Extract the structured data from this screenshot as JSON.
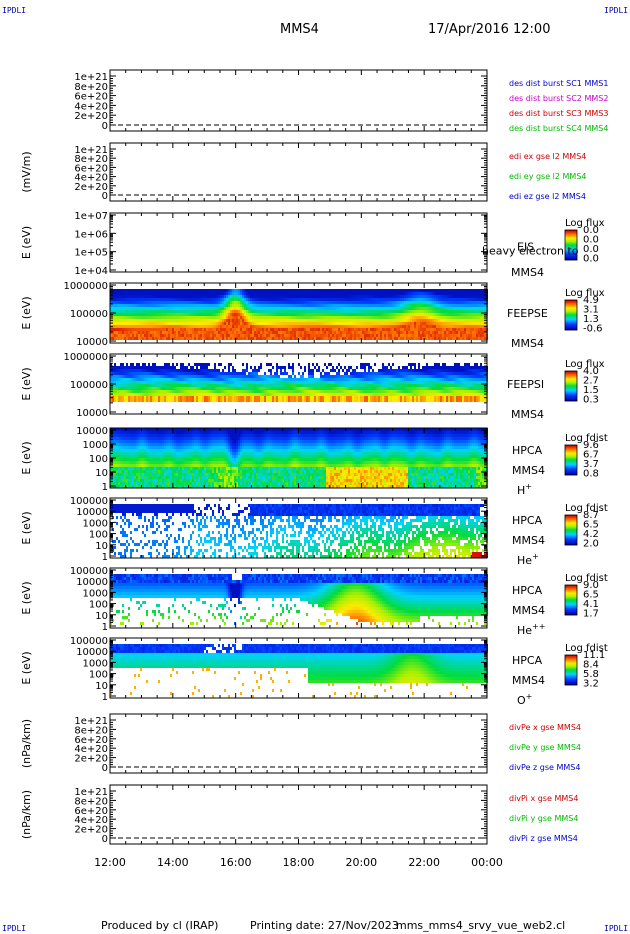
{
  "corner_label": "IPDLI",
  "header": {
    "spacecraft": "MMS4",
    "datetime": "17/Apr/2016 12:00"
  },
  "footer": {
    "producer": "Produced by cl (IRAP)",
    "printing_date": "Printing date: 27/Nov/2023",
    "script_name": "mms_mms4_srvy_vue_web2.cl"
  },
  "chart_data": {
    "type": "multi-panel",
    "x_ticks": [
      "12:00",
      "14:00",
      "16:00",
      "18:00",
      "20:00",
      "22:00",
      "00:00"
    ],
    "panels": [
      {
        "kind": "line",
        "ylabel": "",
        "yticks": [
          "1e+21",
          "8e+20",
          "6e+20",
          "4e+20",
          "2e+20",
          "0"
        ],
        "ylim": [
          0,
          1.1e+21
        ],
        "series": [
          {
            "name": "des dist burst SC1 MMS1",
            "color": "#0000cc"
          },
          {
            "name": "des dist burst SC2 MMS2",
            "color": "#cc00cc"
          },
          {
            "name": "des dist burst SC3 MMS3",
            "color": "#cc0000"
          },
          {
            "name": "des dist burst SC4 MMS4",
            "color": "#00bb00"
          }
        ]
      },
      {
        "kind": "line",
        "ylabel": "(mV/m)",
        "yticks": [
          "1e+21",
          "8e+20",
          "6e+20",
          "4e+20",
          "2e+20",
          "0"
        ],
        "ylim": [
          0,
          1.1e+21
        ],
        "series": [
          {
            "name": "edi ex gse l2 MMS4",
            "color": "#cc0000"
          },
          {
            "name": "edi ey gse l2 MMS4",
            "color": "#00bb00"
          },
          {
            "name": "edi ez gse l2 MMS4",
            "color": "#0000cc"
          }
        ]
      },
      {
        "kind": "spectrogram",
        "ylabel": "E (eV)",
        "yticks": [
          "1e+07",
          "1e+06",
          "1e+05",
          "1e+04"
        ],
        "log": true,
        "instrument": "EIS",
        "spacecraft": "MMS4",
        "species": "",
        "overlay": "heavy electron to",
        "cbar_title": "Log flux",
        "cbar_ticks": [
          "0.0",
          "0.0",
          "0.0",
          "0.0"
        ],
        "pattern": "empty"
      },
      {
        "kind": "spectrogram",
        "ylabel": "E (eV)",
        "yticks": [
          "1000000",
          "100000",
          "10000"
        ],
        "log": true,
        "instrument": "FEEPSE",
        "spacecraft": "MMS4",
        "species": "",
        "cbar_title": "Log flux",
        "cbar_ticks": [
          "4.9",
          "3.1",
          "1.3",
          "-0.6"
        ],
        "pattern": "feepse"
      },
      {
        "kind": "spectrogram",
        "ylabel": "E (eV)",
        "yticks": [
          "1000000",
          "100000",
          "10000"
        ],
        "log": true,
        "instrument": "FEEPSI",
        "spacecraft": "MMS4",
        "species": "",
        "cbar_title": "Log flux",
        "cbar_ticks": [
          "4.0",
          "2.7",
          "1.5",
          "0.3"
        ],
        "pattern": "feepsi"
      },
      {
        "kind": "spectrogram",
        "ylabel": "E (eV)",
        "yticks": [
          "10000",
          "1000",
          "100",
          "10",
          "1"
        ],
        "log": true,
        "instrument": "HPCA",
        "spacecraft": "MMS4",
        "species": "H",
        "species_sup": "+",
        "cbar_title": "Log fdist",
        "cbar_ticks": [
          "9.6",
          "6.7",
          "3.7",
          "0.8"
        ],
        "pattern": "hplus"
      },
      {
        "kind": "spectrogram",
        "ylabel": "E (eV)",
        "yticks": [
          "100000",
          "10000",
          "1000",
          "100",
          "10",
          "1"
        ],
        "log": true,
        "instrument": "HPCA",
        "spacecraft": "MMS4",
        "species": "He",
        "species_sup": "+",
        "cbar_title": "Log fdist",
        "cbar_ticks": [
          "8.7",
          "6.5",
          "4.2",
          "2.0"
        ],
        "pattern": "heplus"
      },
      {
        "kind": "spectrogram",
        "ylabel": "E (eV)",
        "yticks": [
          "100000",
          "10000",
          "1000",
          "100",
          "10",
          "1"
        ],
        "log": true,
        "instrument": "HPCA",
        "spacecraft": "MMS4",
        "species": "He",
        "species_sup": "++",
        "cbar_title": "Log fdist",
        "cbar_ticks": [
          "9.0",
          "6.5",
          "4.1",
          "1.7"
        ],
        "pattern": "hepp"
      },
      {
        "kind": "spectrogram",
        "ylabel": "E (eV)",
        "yticks": [
          "100000",
          "10000",
          "1000",
          "100",
          "10",
          "1"
        ],
        "log": true,
        "instrument": "HPCA",
        "spacecraft": "MMS4",
        "species": "O",
        "species_sup": "+",
        "cbar_title": "Log fdist",
        "cbar_ticks": [
          "11.1",
          "8.4",
          "5.8",
          "3.2"
        ],
        "pattern": "oplus"
      },
      {
        "kind": "line",
        "ylabel": "(nPa/km)",
        "yticks": [
          "1e+21",
          "8e+20",
          "6e+20",
          "4e+20",
          "2e+20",
          "0"
        ],
        "ylim": [
          0,
          1.1e+21
        ],
        "series": [
          {
            "name": "divPe x gse MMS4",
            "color": "#cc0000"
          },
          {
            "name": "divPe y gse MMS4",
            "color": "#00bb00"
          },
          {
            "name": "divPe z gse MMS4",
            "color": "#0000cc"
          }
        ]
      },
      {
        "kind": "line",
        "ylabel": "(nPa/km)",
        "yticks": [
          "1e+21",
          "8e+20",
          "6e+20",
          "4e+20",
          "2e+20",
          "0"
        ],
        "ylim": [
          0,
          1.1e+21
        ],
        "series": [
          {
            "name": "divPi x gse MMS4",
            "color": "#cc0000"
          },
          {
            "name": "divPi y gse MMS4",
            "color": "#00bb00"
          },
          {
            "name": "divPi z gse MMS4",
            "color": "#0000cc"
          }
        ]
      }
    ]
  }
}
